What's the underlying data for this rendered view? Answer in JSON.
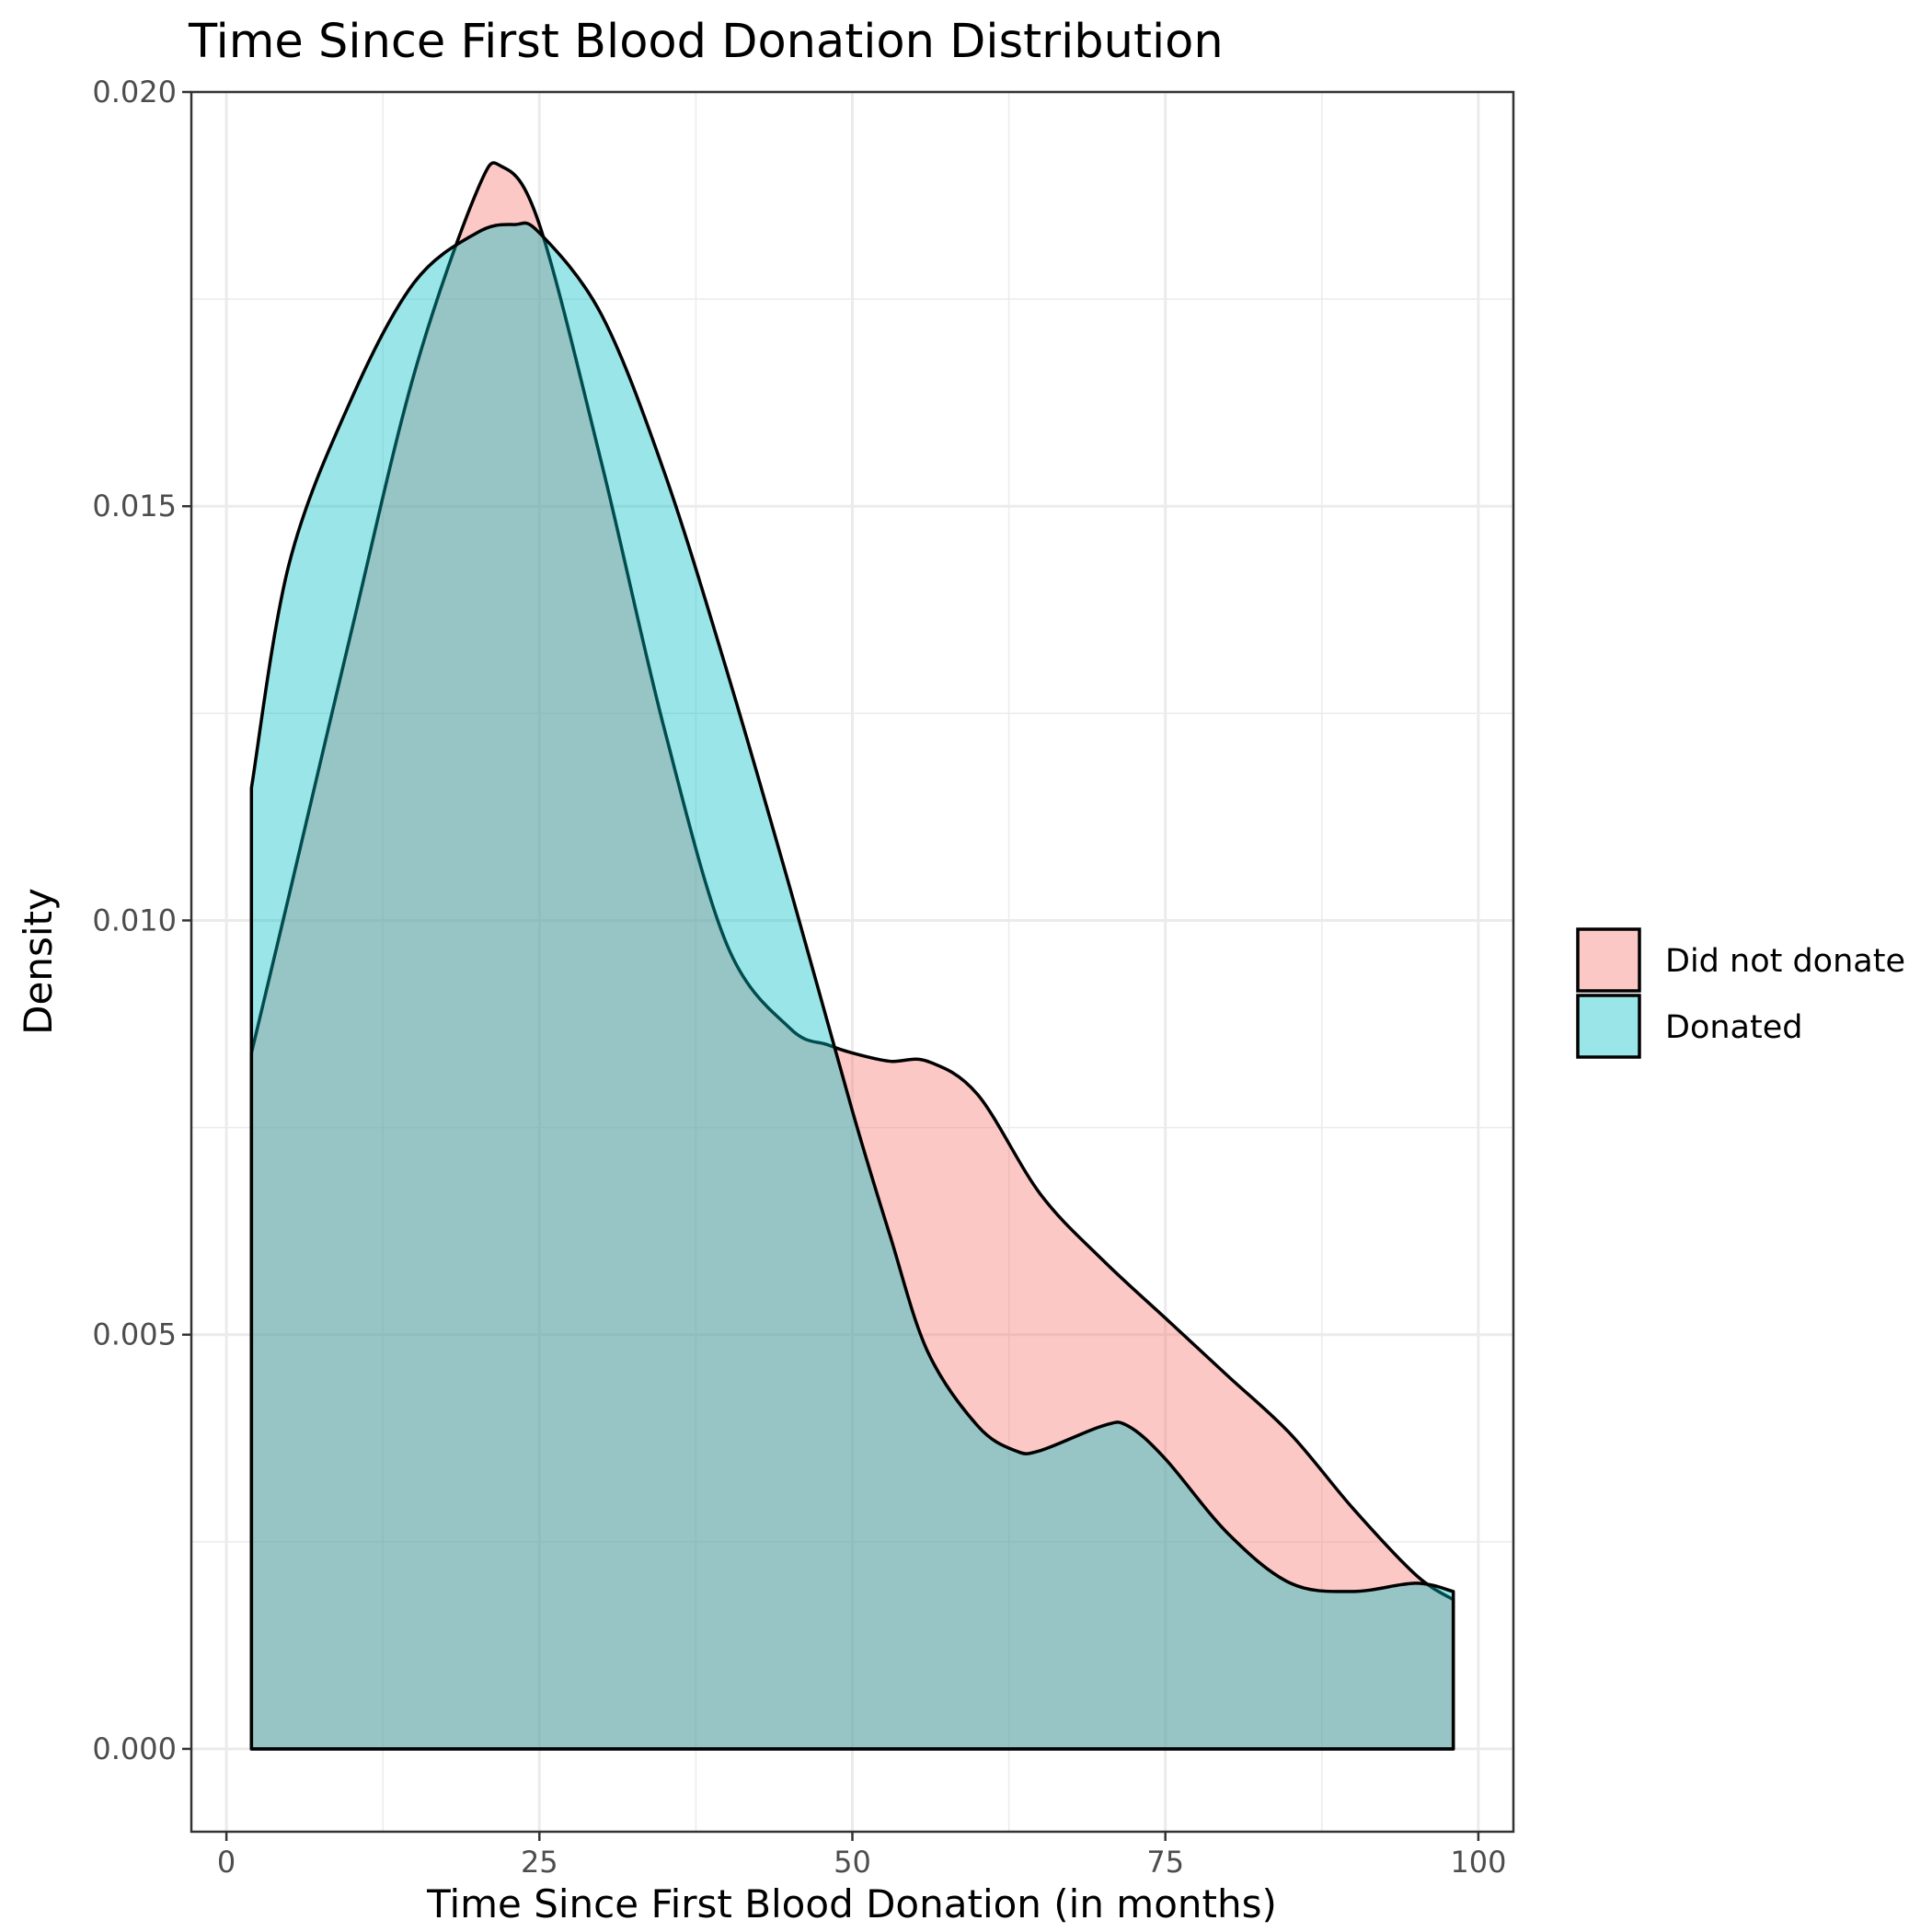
{
  "chart_data": {
    "type": "area",
    "title": "Time Since First Blood Donation Distribution",
    "xlabel": "Time Since First Blood Donation (in months)",
    "ylabel": "Density",
    "xlim": [
      -2.8,
      102.8
    ],
    "ylim": [
      -0.001,
      0.02
    ],
    "x_ticks": [
      0,
      25,
      50,
      75,
      100
    ],
    "x_tick_labels": [
      "0",
      "25",
      "50",
      "75",
      "100"
    ],
    "y_ticks": [
      0,
      0.005,
      0.01,
      0.015,
      0.02
    ],
    "y_tick_labels": [
      "0.000",
      "0.005",
      "0.010",
      "0.015",
      "0.020"
    ],
    "grid": true,
    "legend": {
      "position": "right"
    },
    "series": [
      {
        "name": "Did not donate",
        "color": "#F8766D",
        "x": [
          2,
          5,
          10,
          15,
          20,
          22,
          25,
          30,
          35,
          40,
          45,
          48,
          50,
          53,
          56,
          60,
          65,
          70,
          75,
          80,
          85,
          90,
          95,
          98
        ],
        "y": [
          0.0084,
          0.0103,
          0.0135,
          0.0166,
          0.0188,
          0.0191,
          0.0184,
          0.0155,
          0.0123,
          0.0097,
          0.0087,
          0.0085,
          0.0084,
          0.0083,
          0.0083,
          0.0079,
          0.0067,
          0.0059,
          0.0052,
          0.0045,
          0.0038,
          0.0029,
          0.0021,
          0.0018
        ]
      },
      {
        "name": "Donated",
        "color": "#00BFC4",
        "x": [
          2,
          5,
          10,
          15,
          20,
          23,
          25,
          30,
          35,
          40,
          45,
          50,
          53,
          56,
          60,
          63,
          65,
          70,
          72,
          75,
          80,
          85,
          90,
          95,
          98
        ],
        "y": [
          0.0116,
          0.0143,
          0.0163,
          0.0177,
          0.0183,
          0.0184,
          0.0183,
          0.0173,
          0.0154,
          0.013,
          0.0104,
          0.0077,
          0.0062,
          0.0048,
          0.0039,
          0.0036,
          0.0036,
          0.0039,
          0.0039,
          0.0035,
          0.0026,
          0.002,
          0.0019,
          0.002,
          0.0019
        ]
      }
    ]
  }
}
